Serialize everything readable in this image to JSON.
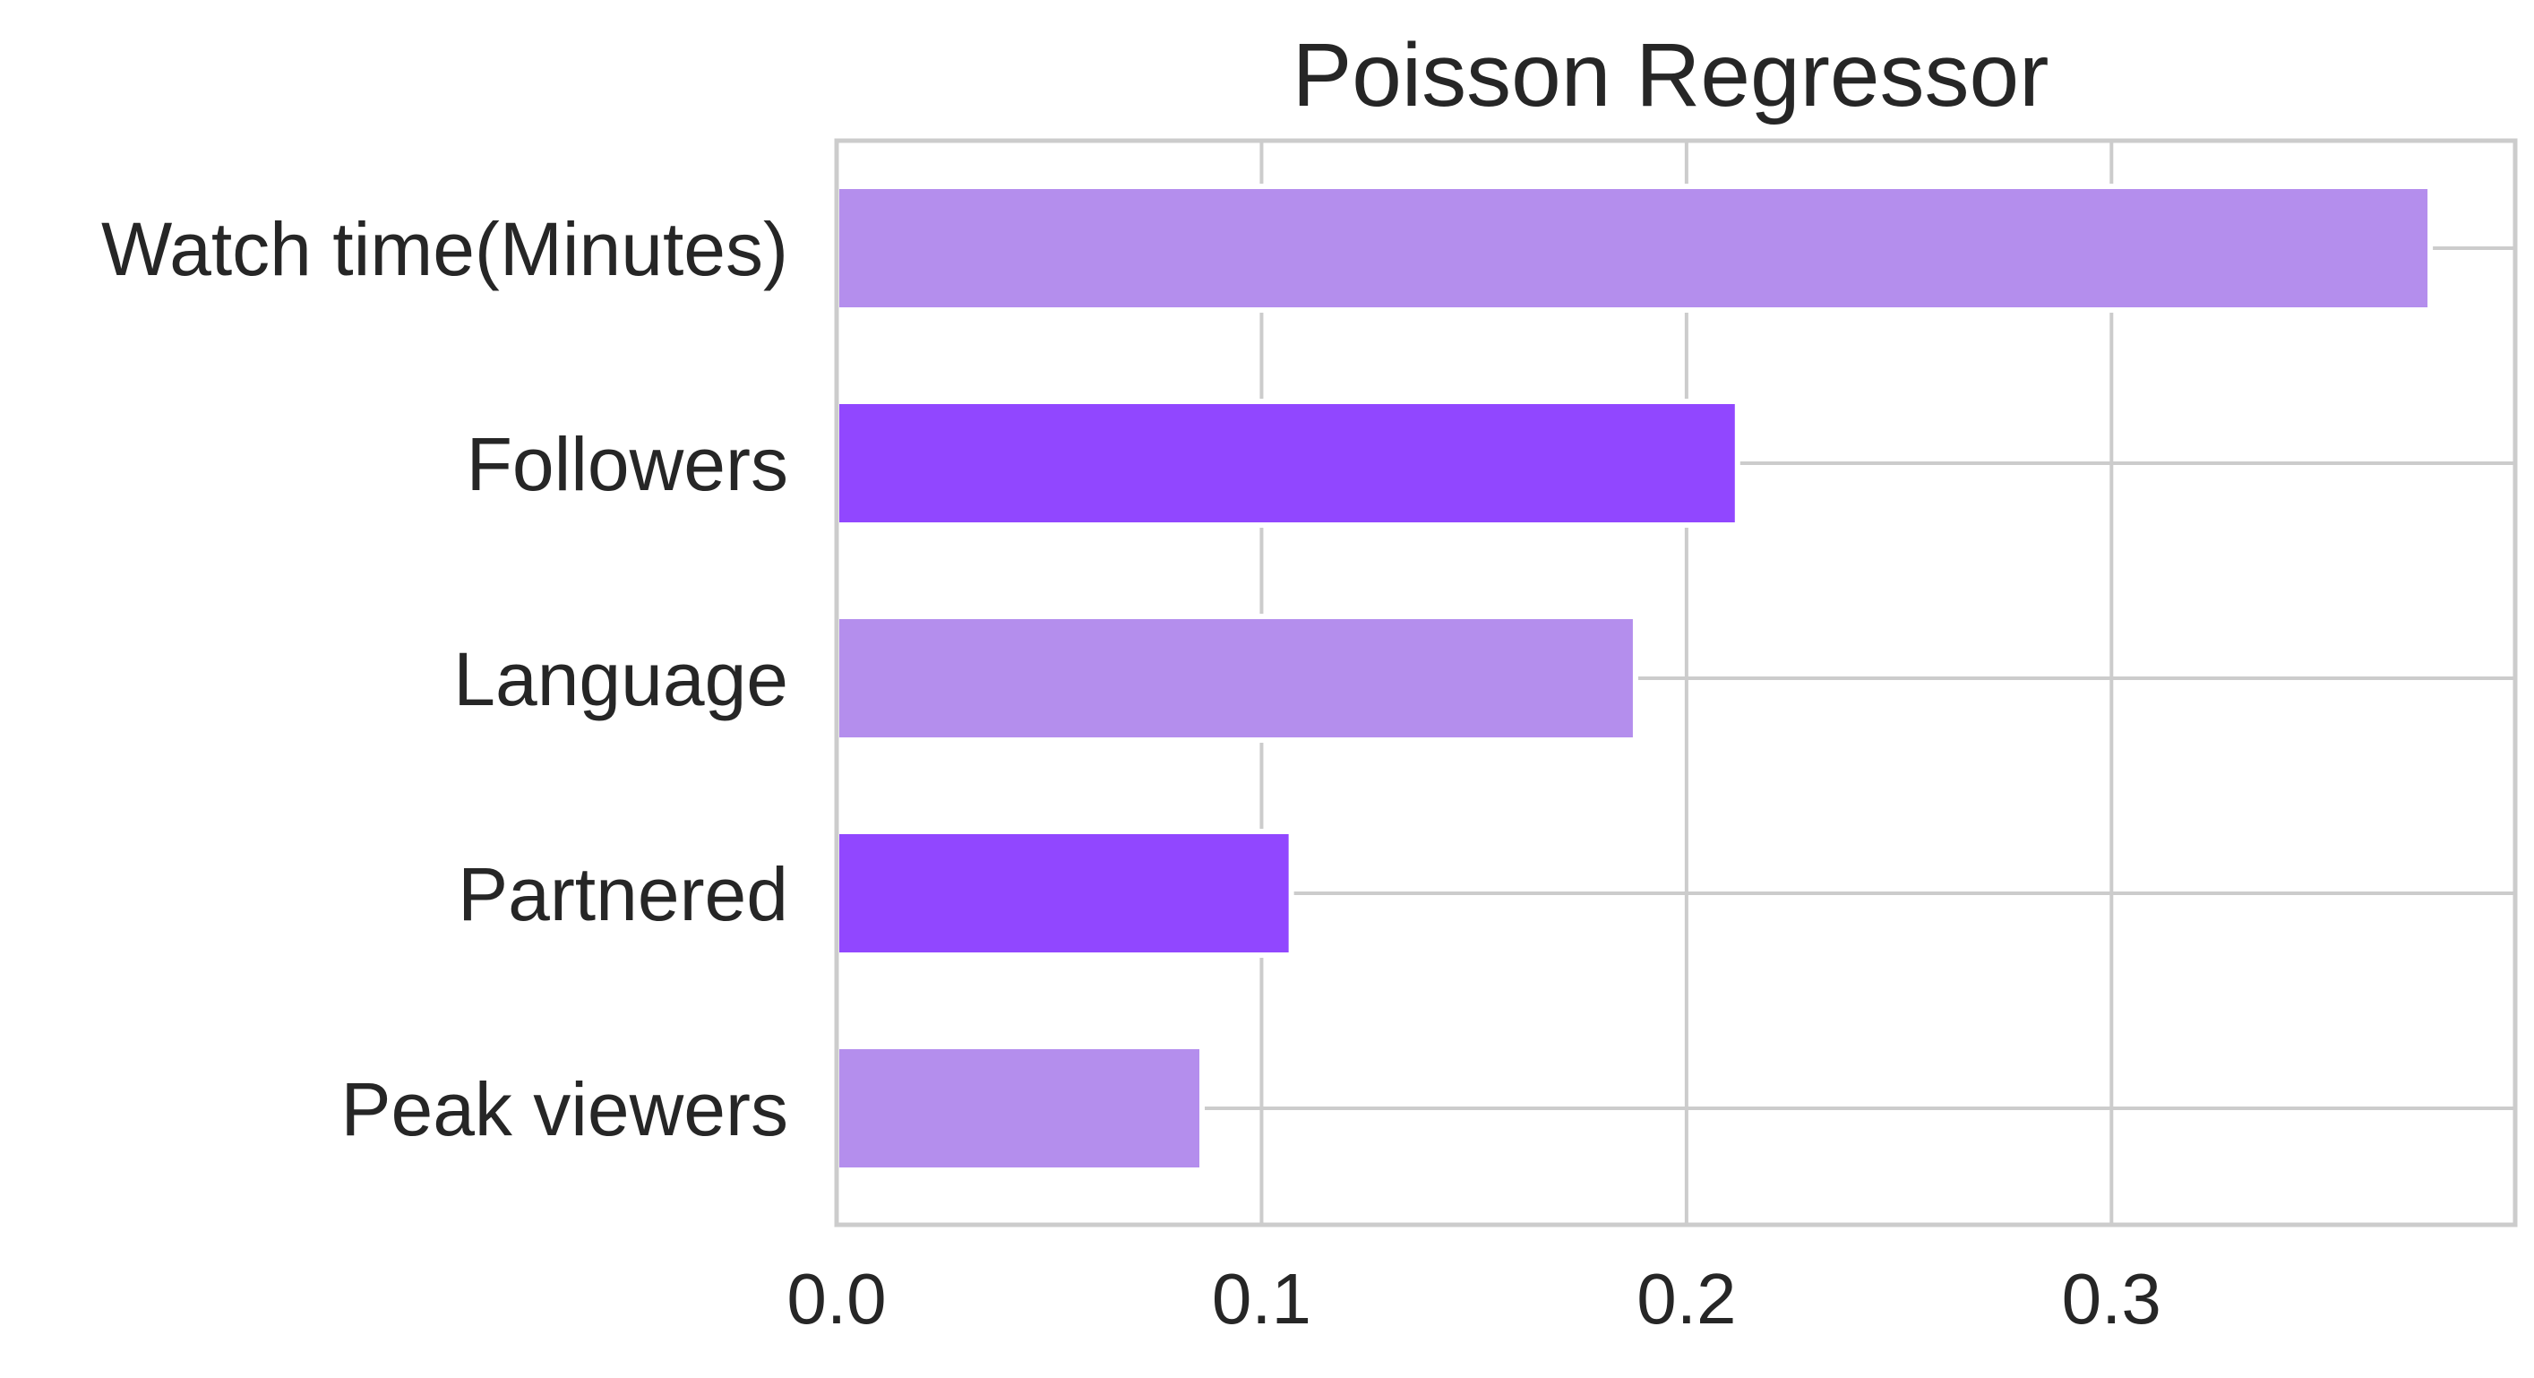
{
  "chart_data": {
    "type": "bar",
    "orientation": "horizontal",
    "title": "Poisson Regressor",
    "xlabel": "",
    "ylabel": "",
    "categories": [
      "Watch time(Minutes)",
      "Followers",
      "Language",
      "Partnered",
      "Peak viewers"
    ],
    "values": [
      0.375,
      0.212,
      0.188,
      0.107,
      0.086
    ],
    "bar_colors": [
      "#b48eed",
      "#9147ff",
      "#b48eed",
      "#9147ff",
      "#b48eed"
    ],
    "xlim": [
      0,
      0.395
    ],
    "xticks": [
      0.0,
      0.1,
      0.2,
      0.3
    ],
    "xtick_labels": [
      "0.0",
      "0.1",
      "0.2",
      "0.3"
    ],
    "grid": true,
    "grid_color": "#cccccc",
    "spine_color": "#cccccc",
    "text_color": "#262626",
    "background": "#ffffff"
  }
}
